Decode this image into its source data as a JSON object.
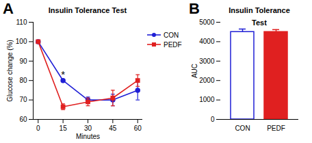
{
  "chart_data": [
    {
      "type": "line",
      "panel_label": "A",
      "title": "Insulin Tolerance Test",
      "x_label": "Minutes",
      "y_label": "Glucose change (%)",
      "x": [
        0,
        15,
        30,
        45,
        60
      ],
      "xlim": [
        -3,
        63
      ],
      "xticks": [
        0,
        15,
        30,
        45,
        60
      ],
      "ylim": [
        60,
        110
      ],
      "yticks": [
        60,
        70,
        80,
        90,
        100,
        110
      ],
      "legend": "right",
      "series": [
        {
          "name": "CON",
          "color": "#1f1fd6",
          "marker": "circle",
          "values": [
            100,
            80,
            70,
            70,
            75
          ],
          "errors": [
            0,
            0.5,
            1.5,
            3,
            5
          ]
        },
        {
          "name": "PEDF",
          "color": "#e02020",
          "marker": "square",
          "values": [
            100,
            66.5,
            69,
            71,
            80
          ],
          "errors": [
            0,
            1.5,
            2,
            4,
            3
          ]
        }
      ],
      "annotations": [
        {
          "text": "*",
          "x": 15,
          "y": 83
        }
      ]
    },
    {
      "type": "bar",
      "panel_label": "B",
      "title": "Insulin Tolerance Test",
      "y_label": "AUC",
      "categories": [
        "CON",
        "PEDF"
      ],
      "values": [
        4500,
        4500
      ],
      "errors": [
        150,
        120
      ],
      "colors": [
        "#ffffff",
        "#e02020"
      ],
      "ylim": [
        0,
        5000
      ],
      "yticks": [
        0,
        1000,
        2000,
        3000,
        4000,
        5000
      ]
    }
  ]
}
